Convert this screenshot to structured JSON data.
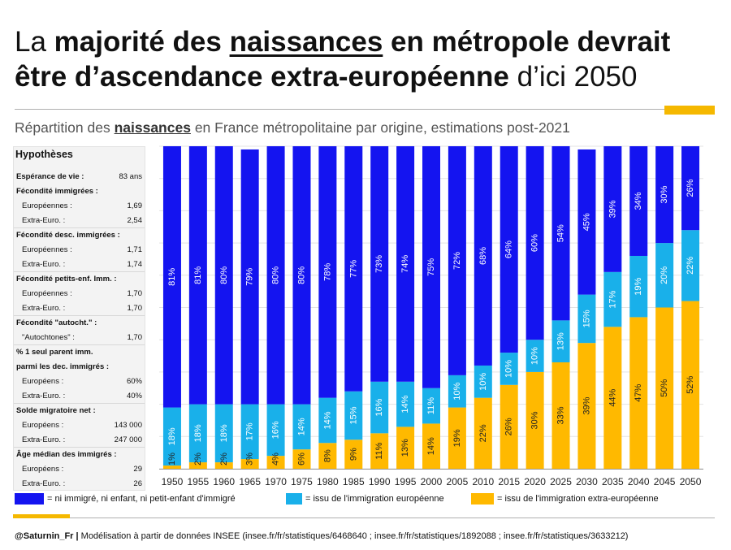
{
  "title": {
    "t1": "La ",
    "t2": "majorité des ",
    "t3": "naissances",
    "t4": " en métropole devrait",
    "t5": "être d’ascendance extra-européenne",
    "t6": " d’ici 2050"
  },
  "subtitle": {
    "s1": "Répartition des ",
    "s2": "naissances",
    "s3": " en France métropolitaine par origine, estimations post-2021"
  },
  "hypotheses": {
    "heading": "Hypothèses",
    "rows": [
      {
        "label": "Espérance de vie :",
        "value": "83 ans",
        "style": "bold"
      },
      {
        "label": "Fécondité immigrées :",
        "value": "",
        "style": "bold"
      },
      {
        "label": "Européennes :",
        "value": "1,69",
        "style": "ind"
      },
      {
        "label": "Extra-Euro. :",
        "value": "2,54",
        "style": "ind"
      },
      {
        "label": "Fécondité desc. immigrées :",
        "value": "",
        "style": "bold"
      },
      {
        "label": "Européennes :",
        "value": "1,71",
        "style": "ind"
      },
      {
        "label": "Extra-Euro. :",
        "value": "1,74",
        "style": "ind"
      },
      {
        "label": "Fécondité petits-enf. Imm. :",
        "value": "",
        "style": "bold"
      },
      {
        "label": "Européennes :",
        "value": "1,70",
        "style": "ind"
      },
      {
        "label": "Extra-Euro. :",
        "value": "1,70",
        "style": "ind"
      },
      {
        "label": "Fécondité \"autocht.\" :",
        "value": "",
        "style": "bold"
      },
      {
        "label": "\"Autochtones\" :",
        "value": "1,70",
        "style": "ind"
      },
      {
        "label": "% 1 seul parent imm.",
        "value": "",
        "style": "bold"
      },
      {
        "label": "parmi les dec. immigrés :",
        "value": "",
        "style": "bold"
      },
      {
        "label": "Européens :",
        "value": "60%",
        "style": "ind"
      },
      {
        "label": "Extra-Euro. :",
        "value": "40%",
        "style": "ind"
      },
      {
        "label": "Solde migratoire net :",
        "value": "",
        "style": "bold"
      },
      {
        "label": "Européens :",
        "value": "143 000",
        "style": "ind"
      },
      {
        "label": "Extra-Euro. :",
        "value": "247 000",
        "style": "ind"
      },
      {
        "label": "Âge médian des immigrés :",
        "value": "",
        "style": "bold"
      },
      {
        "label": "Européens :",
        "value": "29",
        "style": "ind"
      },
      {
        "label": "Extra-Euro. :",
        "value": "26",
        "style": "ind"
      }
    ]
  },
  "legend": {
    "native": "= ni immigré, ni enfant, ni petit-enfant d'immigré",
    "european": "= issu de l'immigration européenne",
    "extra": "= issu de l'immigration extra-européenne"
  },
  "footer": {
    "handle": "@Saturnin_Fr |",
    "text": " Modélisation à partir de données INSEE (insee.fr/fr/statistiques/6468640 ; insee.fr/fr/statistiques/1892088 ; insee.fr/fr/statistiques/3633212)"
  },
  "colors": {
    "native": "#1414f0",
    "european": "#19b0ea",
    "extra": "#ffb900",
    "accent": "#f5b800"
  },
  "chart_data": {
    "type": "bar",
    "stacked": true,
    "percent": true,
    "ylim": [
      0,
      100
    ],
    "grid": true,
    "categories": [
      "1950",
      "1955",
      "1960",
      "1965",
      "1970",
      "1975",
      "1980",
      "1985",
      "1990",
      "1995",
      "2000",
      "2005",
      "2010",
      "2015",
      "2020",
      "2025",
      "2030",
      "2035",
      "2040",
      "2045",
      "2050"
    ],
    "series": [
      {
        "name": "issu de l'immigration extra-européenne",
        "color": "#ffb900",
        "values": [
          1,
          2,
          2,
          3,
          4,
          6,
          8,
          9,
          11,
          13,
          14,
          19,
          22,
          26,
          30,
          33,
          39,
          44,
          47,
          50,
          52
        ]
      },
      {
        "name": "issu de l'immigration européenne",
        "color": "#19b0ea",
        "values": [
          18,
          18,
          18,
          17,
          16,
          14,
          14,
          15,
          16,
          14,
          11,
          10,
          10,
          10,
          10,
          13,
          15,
          17,
          19,
          20,
          22
        ]
      },
      {
        "name": "ni immigré, ni enfant, ni petit-enfant d'immigré",
        "color": "#1414f0",
        "values": [
          81,
          81,
          80,
          79,
          80,
          80,
          78,
          77,
          73,
          74,
          75,
          72,
          68,
          64,
          60,
          54,
          45,
          39,
          34,
          30,
          26
        ]
      }
    ],
    "labels": [
      [
        "1%",
        "2%",
        "2%",
        "3%",
        "4%",
        "6%",
        "8%",
        "9%",
        "11%",
        "13%",
        "14%",
        "19%",
        "22%",
        "26%",
        "30%",
        "33%",
        "39%",
        "44%",
        "47%",
        "50%",
        "52%"
      ],
      [
        "18%",
        "18%",
        "18%",
        "17%",
        "16%",
        "14%",
        "14%",
        "15%",
        "16%",
        "14%",
        "11%",
        "10%",
        "10%",
        "10%",
        "10%",
        "13%",
        "15%",
        "17%",
        "19%",
        "20%",
        "22%"
      ],
      [
        "81%",
        "81%",
        "80%",
        "79%",
        "80%",
        "80%",
        "78%",
        "77%",
        "73%",
        "74%",
        "75%",
        "72%",
        "68%",
        "64%",
        "60%",
        "54%",
        "45%",
        "39%",
        "34%",
        "30%",
        "26%"
      ]
    ]
  }
}
